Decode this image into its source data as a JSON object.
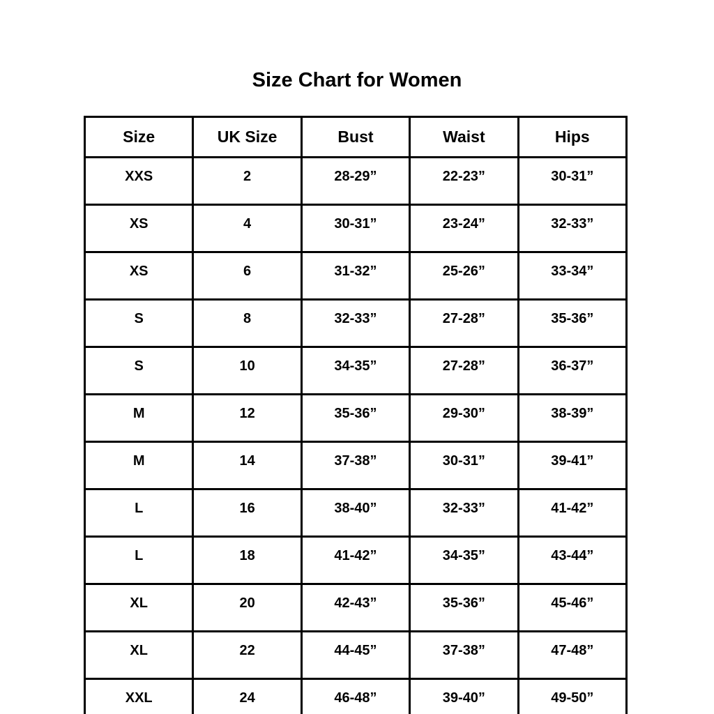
{
  "page": {
    "title": "Size Chart for Women"
  },
  "colors": {
    "background": "#ffffff",
    "text": "#000000",
    "border": "#000000"
  },
  "chart_data": {
    "type": "table",
    "title": "Size Chart for Women",
    "columns": [
      "Size",
      "UK Size",
      "Bust",
      "Waist",
      "Hips"
    ],
    "column_keys": [
      "size",
      "uk-size",
      "bust",
      "waist",
      "hips"
    ],
    "rows": [
      [
        "XXS",
        "2",
        "28-29”",
        "22-23”",
        "30-31”"
      ],
      [
        "XS",
        "4",
        "30-31”",
        "23-24”",
        "32-33”"
      ],
      [
        "XS",
        "6",
        "31-32”",
        "25-26”",
        "33-34”"
      ],
      [
        "S",
        "8",
        "32-33”",
        "27-28”",
        "35-36”"
      ],
      [
        "S",
        "10",
        "34-35”",
        "27-28”",
        "36-37”"
      ],
      [
        "M",
        "12",
        "35-36”",
        "29-30”",
        "38-39”"
      ],
      [
        "M",
        "14",
        "37-38”",
        "30-31”",
        "39-41”"
      ],
      [
        "L",
        "16",
        "38-40”",
        "32-33”",
        "41-42”"
      ],
      [
        "L",
        "18",
        "41-42”",
        "34-35”",
        "43-44”"
      ],
      [
        "XL",
        "20",
        "42-43”",
        "35-36”",
        "45-46”"
      ],
      [
        "XL",
        "22",
        "44-45”",
        "37-38”",
        "47-48”"
      ],
      [
        "XXL",
        "24",
        "46-48”",
        "39-40”",
        "49-50”"
      ]
    ]
  }
}
